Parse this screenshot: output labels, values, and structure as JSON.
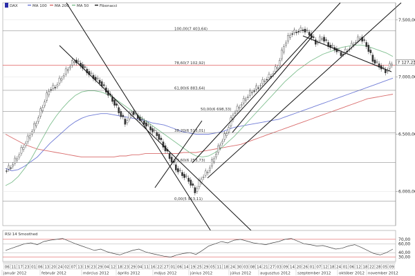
{
  "chart_data": {
    "type": "candlestick",
    "legend": [
      {
        "name": "DAX",
        "color": "#333333",
        "icon": "candle-icon"
      },
      {
        "name": "MA 100",
        "color": "#6f7bd6"
      },
      {
        "name": "MA 200",
        "color": "#d96c6c"
      },
      {
        "name": "MA 50",
        "color": "#7fbf8f"
      },
      {
        "name": "Fibonacci",
        "color": "#222222"
      }
    ],
    "y_axis": {
      "min": 5700,
      "max": 7650,
      "ticks": [
        6000,
        6500,
        7000,
        7500
      ],
      "tick_labels": [
        "6.000,00",
        "6.500,00",
        "7.000,00",
        "7.500,00"
      ]
    },
    "last_price": {
      "value": 7127.23,
      "label": "7 127,23"
    },
    "fibonacci": [
      {
        "value": 7403.64,
        "label": "100,00(7 403,64)"
      },
      {
        "value": 7102.92,
        "label": "78,60(7 102,92)"
      },
      {
        "value": 6883.64,
        "label": "61,80(6 883,64)"
      },
      {
        "value": 6698.33,
        "label": "50,00(6 698,33)"
      },
      {
        "value": 6513.01,
        "label": "38,20(6 513,01)"
      },
      {
        "value": 6253.73,
        "label": "23,60(6 253,73)"
      },
      {
        "value": 5913.11,
        "label": "0,00(5 913,11)"
      }
    ],
    "series": [
      {
        "name": "DAX",
        "values": [
          6180,
          6220,
          6300,
          6400,
          6500,
          6610,
          6750,
          6890,
          6920,
          7000,
          7080,
          7150,
          7110,
          7050,
          7000,
          6960,
          6880,
          6800,
          6700,
          6600,
          6700,
          6650,
          6600,
          6550,
          6500,
          6400,
          6300,
          6200,
          6150,
          6100,
          6000,
          6120,
          6180,
          6300,
          6420,
          6520,
          6680,
          6750,
          6820,
          6880,
          6920,
          6980,
          7020,
          7100,
          7280,
          7380,
          7400,
          7420,
          7380,
          7300,
          7350,
          7280,
          7250,
          7200,
          7240,
          7300,
          7350,
          7280,
          7150,
          7100,
          7050,
          7127
        ]
      },
      {
        "name": "MA 100",
        "values": [
          6200,
          6180,
          6190,
          6220,
          6260,
          6300,
          6360,
          6420,
          6470,
          6520,
          6570,
          6610,
          6640,
          6660,
          6670,
          6680,
          6680,
          6670,
          6660,
          6650,
          6640,
          6630,
          6620,
          6600,
          6590,
          6580,
          6560,
          6540,
          6520,
          6510,
          6500,
          6500,
          6500,
          6510,
          6520,
          6540,
          6560,
          6570,
          6580,
          6590,
          6600,
          6610,
          6620,
          6630,
          6650,
          6670,
          6690,
          6710,
          6730,
          6750,
          6770,
          6790,
          6810,
          6830,
          6850,
          6870,
          6890,
          6910,
          6930,
          6950,
          6970,
          6990
        ]
      },
      {
        "name": "MA 200",
        "values": [
          6500,
          6470,
          6440,
          6410,
          6390,
          6370,
          6360,
          6350,
          6340,
          6330,
          6320,
          6310,
          6300,
          6300,
          6300,
          6300,
          6300,
          6300,
          6310,
          6310,
          6320,
          6320,
          6330,
          6330,
          6330,
          6330,
          6330,
          6330,
          6340,
          6340,
          6340,
          6350,
          6360,
          6370,
          6380,
          6390,
          6400,
          6410,
          6430,
          6450,
          6470,
          6490,
          6510,
          6530,
          6550,
          6570,
          6590,
          6610,
          6630,
          6650,
          6670,
          6690,
          6710,
          6730,
          6750,
          6770,
          6790,
          6810,
          6820,
          6830,
          6840,
          6850
        ]
      },
      {
        "name": "MA 50",
        "values": [
          6050,
          6080,
          6130,
          6200,
          6280,
          6380,
          6480,
          6580,
          6660,
          6730,
          6790,
          6840,
          6870,
          6880,
          6880,
          6870,
          6850,
          6820,
          6780,
          6740,
          6700,
          6660,
          6620,
          6580,
          6540,
          6500,
          6460,
          6420,
          6380,
          6340,
          6310,
          6300,
          6310,
          6340,
          6380,
          6430,
          6480,
          6540,
          6600,
          6660,
          6720,
          6780,
          6840,
          6900,
          6960,
          7010,
          7060,
          7100,
          7140,
          7170,
          7200,
          7220,
          7240,
          7260,
          7270,
          7280,
          7280,
          7270,
          7250,
          7230,
          7210,
          7180
        ]
      }
    ],
    "rsi": {
      "label": "RSI 14 Smoothed",
      "levels": [
        70,
        60,
        40,
        30
      ],
      "level_labels": [
        "70,00",
        "60,00",
        "40,00",
        "30,00"
      ],
      "values": [
        45,
        50,
        55,
        60,
        62,
        58,
        65,
        68,
        70,
        72,
        66,
        60,
        55,
        50,
        45,
        48,
        42,
        38,
        35,
        40,
        45,
        48,
        42,
        38,
        35,
        32,
        30,
        35,
        38,
        40,
        36,
        45,
        55,
        60,
        65,
        62,
        68,
        70,
        66,
        62,
        60,
        58,
        62,
        65,
        70,
        72,
        66,
        60,
        58,
        55,
        56,
        52,
        48,
        50,
        55,
        58,
        52,
        45,
        38,
        35,
        40,
        48
      ]
    },
    "x_axis": {
      "day_ticks": [
        "06",
        "11",
        "17",
        "23",
        "01",
        "06",
        "13",
        "20",
        "24",
        "02",
        "07",
        "13",
        "19",
        "23",
        "29",
        "04",
        "12",
        "18",
        "23",
        "29",
        "04",
        "11",
        "16",
        "22",
        "27",
        "01",
        "06",
        "14",
        "19",
        "25",
        "29",
        "05",
        "11",
        "18",
        "24",
        "30",
        "03",
        "08",
        "14",
        "21",
        "27",
        "03",
        "09",
        "14",
        "20",
        "26",
        "01",
        "07",
        "12",
        "18",
        "24",
        "01",
        "06",
        "12",
        "18",
        "22",
        "28",
        "05",
        "09"
      ],
      "months": [
        "január 2012",
        "február 2012",
        "március 2012",
        "április 2012",
        "május 2012",
        "június 2012",
        "július 2012",
        "augusztus 2012",
        "szeptember 2012",
        "október 2012",
        "november 2012"
      ]
    }
  }
}
